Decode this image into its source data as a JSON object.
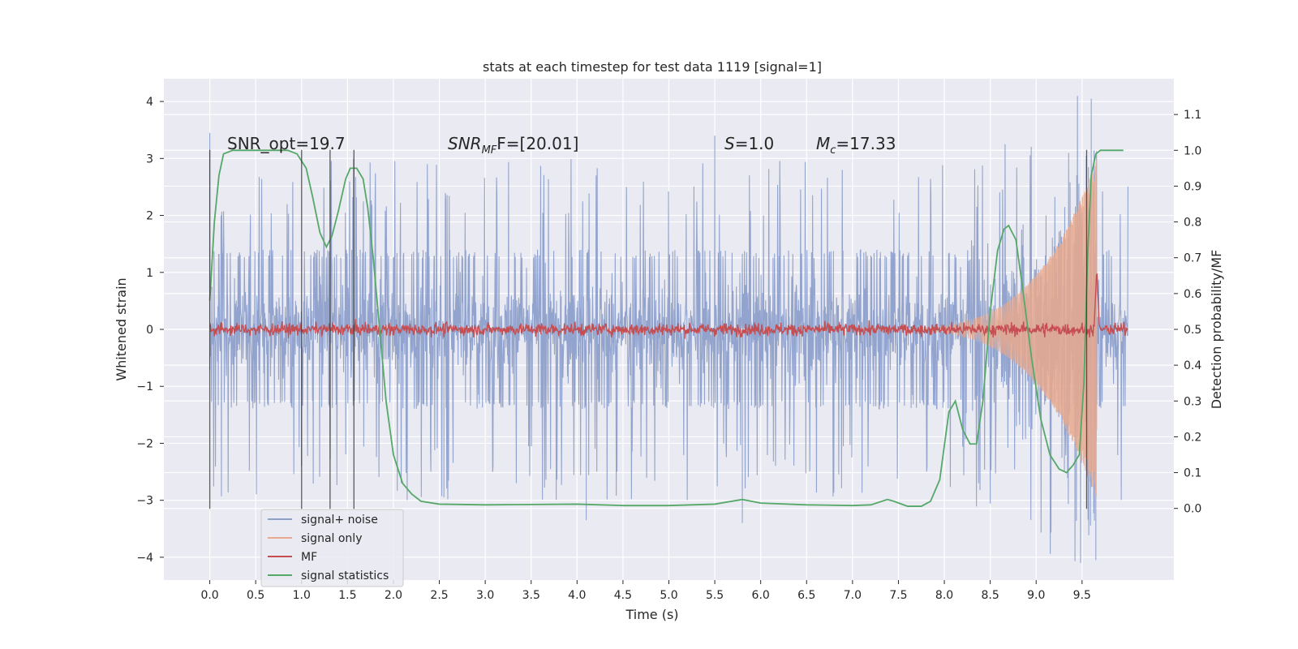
{
  "chart_data": {
    "type": "line",
    "title": "stats at each timestep for test data 1119 [signal=1]",
    "xlabel": "Time (s)",
    "ylabel": "Whitened strain",
    "ylabel_right": "Detection probability/MF",
    "xlim": [
      -0.5,
      10.5
    ],
    "ylim": [
      -4.4,
      4.4
    ],
    "ylim_right": [
      -0.2,
      1.2
    ],
    "x_ticks": [
      0.0,
      0.5,
      1.0,
      1.5,
      2.0,
      2.5,
      3.0,
      3.5,
      4.0,
      4.5,
      5.0,
      5.5,
      6.0,
      6.5,
      7.0,
      7.5,
      8.0,
      8.5,
      9.0,
      9.5
    ],
    "x_tick_labels": [
      "0.0",
      "0.5",
      "1.0",
      "1.5",
      "2.0",
      "2.5",
      "3.0",
      "3.5",
      "4.0",
      "4.5",
      "5.0",
      "5.5",
      "6.0",
      "6.5",
      "7.0",
      "7.5",
      "8.0",
      "8.5",
      "9.0",
      "9.5"
    ],
    "y_ticks": [
      -4,
      -3,
      -2,
      -1,
      0,
      1,
      2,
      3,
      4
    ],
    "y_tick_labels": [
      "−4",
      "−3",
      "−2",
      "−1",
      "0",
      "1",
      "2",
      "3",
      "4"
    ],
    "y_ticks_right": [
      0.0,
      0.1,
      0.2,
      0.3,
      0.4,
      0.5,
      0.6,
      0.7,
      0.8,
      0.9,
      1.0,
      1.1
    ],
    "y_tick_labels_right": [
      "0.0",
      "0.1",
      "0.2",
      "0.3",
      "0.4",
      "0.5",
      "0.6",
      "0.7",
      "0.8",
      "0.9",
      "1.0",
      "1.1"
    ],
    "grid": true,
    "legend_position": "lower-left",
    "annotations": {
      "snr_opt": "SNR_opt=19.7",
      "snr_mf_main": "SNR",
      "snr_mf_sub": "MF",
      "snr_mf_tail": "F=[20.01]",
      "s_main": "S",
      "s_tail": "=1.0",
      "mc_main": "M",
      "mc_sub": "c",
      "mc_tail": "=17.33"
    },
    "vertical_markers_x": [
      0.0,
      1.0,
      1.31,
      1.57,
      9.55
    ],
    "vertical_markers_yrange": [
      -3.15,
      3.15
    ],
    "series": [
      {
        "name": "signal+ noise",
        "axis": "left",
        "color": "#8da0cb",
        "style": "noise",
        "x_range": [
          0.0,
          10.0
        ],
        "envelope_typical": 1.25,
        "envelope_peak_min": 2.0,
        "envelope_peak_max": 3.0,
        "extremes": [
          [
            0.0,
            3.45
          ],
          [
            1.0,
            -2.4
          ],
          [
            5.5,
            3.4
          ],
          [
            5.8,
            -3.4
          ],
          [
            9.45,
            3.9
          ],
          [
            9.6,
            4.05
          ],
          [
            9.65,
            -4.05
          ],
          [
            4.1,
            -3.35
          ],
          [
            2.55,
            -2.95
          ]
        ]
      },
      {
        "name": "signal only",
        "axis": "left",
        "color": "#e8a98e",
        "style": "chirp",
        "x_range": [
          7.0,
          9.66
        ],
        "amplitude_at_end": 3.0,
        "frequency_start": 15,
        "frequency_end": 60
      },
      {
        "name": "MF",
        "axis": "right",
        "color": "#c44e52",
        "style": "mf",
        "x_range": [
          0.0,
          10.0
        ],
        "baseline": 0.5,
        "noise": 0.012,
        "peak_x": 9.66,
        "peak_value": 0.67
      },
      {
        "name": "signal statistics",
        "axis": "right",
        "color": "#55a868",
        "style": "line",
        "x": [
          0.0,
          0.05,
          0.1,
          0.15,
          0.25,
          0.4,
          0.6,
          0.85,
          0.95,
          1.05,
          1.12,
          1.2,
          1.27,
          1.33,
          1.4,
          1.48,
          1.53,
          1.6,
          1.67,
          1.72,
          1.78,
          1.85,
          1.92,
          2.0,
          2.1,
          2.2,
          2.3,
          2.5,
          3.0,
          3.5,
          4.0,
          4.5,
          5.0,
          5.5,
          5.8,
          6.0,
          6.5,
          7.0,
          7.2,
          7.38,
          7.45,
          7.6,
          7.75,
          7.85,
          7.95,
          8.05,
          8.12,
          8.2,
          8.28,
          8.35,
          8.42,
          8.5,
          8.58,
          8.65,
          8.7,
          8.78,
          8.85,
          8.95,
          9.05,
          9.15,
          9.25,
          9.33,
          9.4,
          9.47,
          9.52,
          9.56,
          9.6,
          9.65,
          9.7,
          9.8,
          9.95
        ],
        "values": [
          0.58,
          0.8,
          0.93,
          0.99,
          1.0,
          1.0,
          1.0,
          1.0,
          0.99,
          0.95,
          0.87,
          0.77,
          0.73,
          0.76,
          0.83,
          0.92,
          0.95,
          0.95,
          0.92,
          0.84,
          0.7,
          0.5,
          0.3,
          0.15,
          0.07,
          0.04,
          0.02,
          0.012,
          0.01,
          0.011,
          0.012,
          0.008,
          0.008,
          0.012,
          0.025,
          0.015,
          0.01,
          0.008,
          0.01,
          0.025,
          0.02,
          0.006,
          0.006,
          0.02,
          0.08,
          0.27,
          0.3,
          0.22,
          0.18,
          0.18,
          0.3,
          0.55,
          0.72,
          0.78,
          0.79,
          0.75,
          0.62,
          0.42,
          0.25,
          0.15,
          0.11,
          0.1,
          0.12,
          0.15,
          0.35,
          0.7,
          0.93,
          0.99,
          1.0,
          1.0,
          1.0
        ]
      }
    ]
  }
}
